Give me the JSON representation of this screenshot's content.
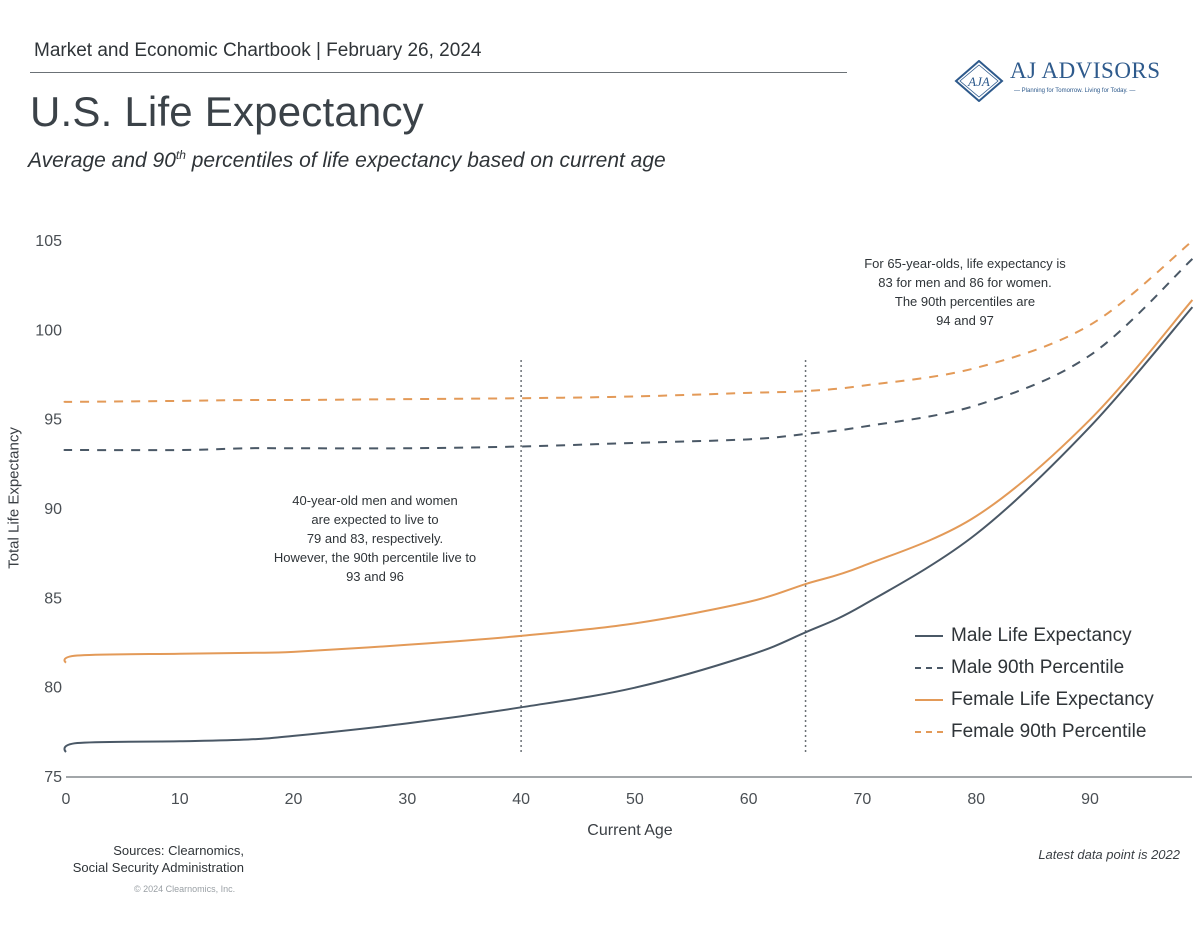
{
  "header": {
    "kicker": "Market and Economic Chartbook | February 26, 2024",
    "title": "U.S. Life Expectancy",
    "subtitle_pre": "Average and 90",
    "subtitle_sup": "th",
    "subtitle_post": " percentiles of life expectancy based on current age"
  },
  "logo": {
    "mark": "AJA",
    "name": "AJ ADVISORS",
    "tagline": "— Planning for Tomorrow. Living for Today. —",
    "color": "#2e5a8c"
  },
  "annotations": {
    "age40": [
      "40-year-old men and women",
      "are expected to live to",
      "79 and 83, respectively.",
      "However, the 90th percentile live to",
      "93 and 96"
    ],
    "age65": [
      "For 65-year-olds, life expectancy is",
      "83 for men and 86 for women.",
      "The 90th percentiles are",
      "94 and 97"
    ]
  },
  "footer": {
    "sources": [
      "Sources: Clearnomics,",
      "Social Security Administration"
    ],
    "copyright": "© 2024 Clearnomics, Inc.",
    "latest": "Latest data point is 2022"
  },
  "colors": {
    "male": "#4a5866",
    "female": "#e39a58",
    "axis": "#6b7176",
    "reference": "#6b7176"
  },
  "chart_data": {
    "type": "line",
    "title": "U.S. Life Expectancy",
    "xlabel": "Current Age",
    "ylabel": "Total Life Expectancy",
    "xlim": [
      0,
      99
    ],
    "ylim": [
      75,
      105
    ],
    "x_ticks": [
      0,
      10,
      20,
      30,
      40,
      50,
      60,
      70,
      80,
      90
    ],
    "y_ticks": [
      75,
      80,
      85,
      90,
      95,
      100,
      105
    ],
    "grid": false,
    "legend_position": "bottom-right",
    "reference_lines": [
      40,
      65
    ],
    "x": [
      0,
      1,
      10,
      16,
      20,
      30,
      40,
      50,
      60,
      65,
      70,
      80,
      90,
      99
    ],
    "series": [
      {
        "name": "Male Life Expectancy",
        "style": "solid",
        "color": "#4a5866",
        "values": [
          76.4,
          76.9,
          77.0,
          77.1,
          77.3,
          78.0,
          78.9,
          80.0,
          81.8,
          83.1,
          84.6,
          88.6,
          94.6,
          101.3
        ]
      },
      {
        "name": "Male 90th Percentile",
        "style": "dashed",
        "color": "#4a5866",
        "values": [
          93.3,
          93.3,
          93.3,
          93.4,
          93.4,
          93.4,
          93.5,
          93.7,
          93.9,
          94.2,
          94.6,
          95.8,
          98.6,
          104.0
        ]
      },
      {
        "name": "Female Life Expectancy",
        "style": "solid",
        "color": "#e39a58",
        "values": [
          81.4,
          81.8,
          81.9,
          81.95,
          82.0,
          82.4,
          82.9,
          83.6,
          84.8,
          85.8,
          86.8,
          89.6,
          95.0,
          101.7
        ]
      },
      {
        "name": "Female 90th Percentile",
        "style": "dashed",
        "color": "#e39a58",
        "values": [
          96.0,
          96.0,
          96.05,
          96.1,
          96.1,
          96.15,
          96.2,
          96.3,
          96.5,
          96.6,
          96.9,
          97.9,
          100.3,
          105.0
        ]
      }
    ]
  }
}
